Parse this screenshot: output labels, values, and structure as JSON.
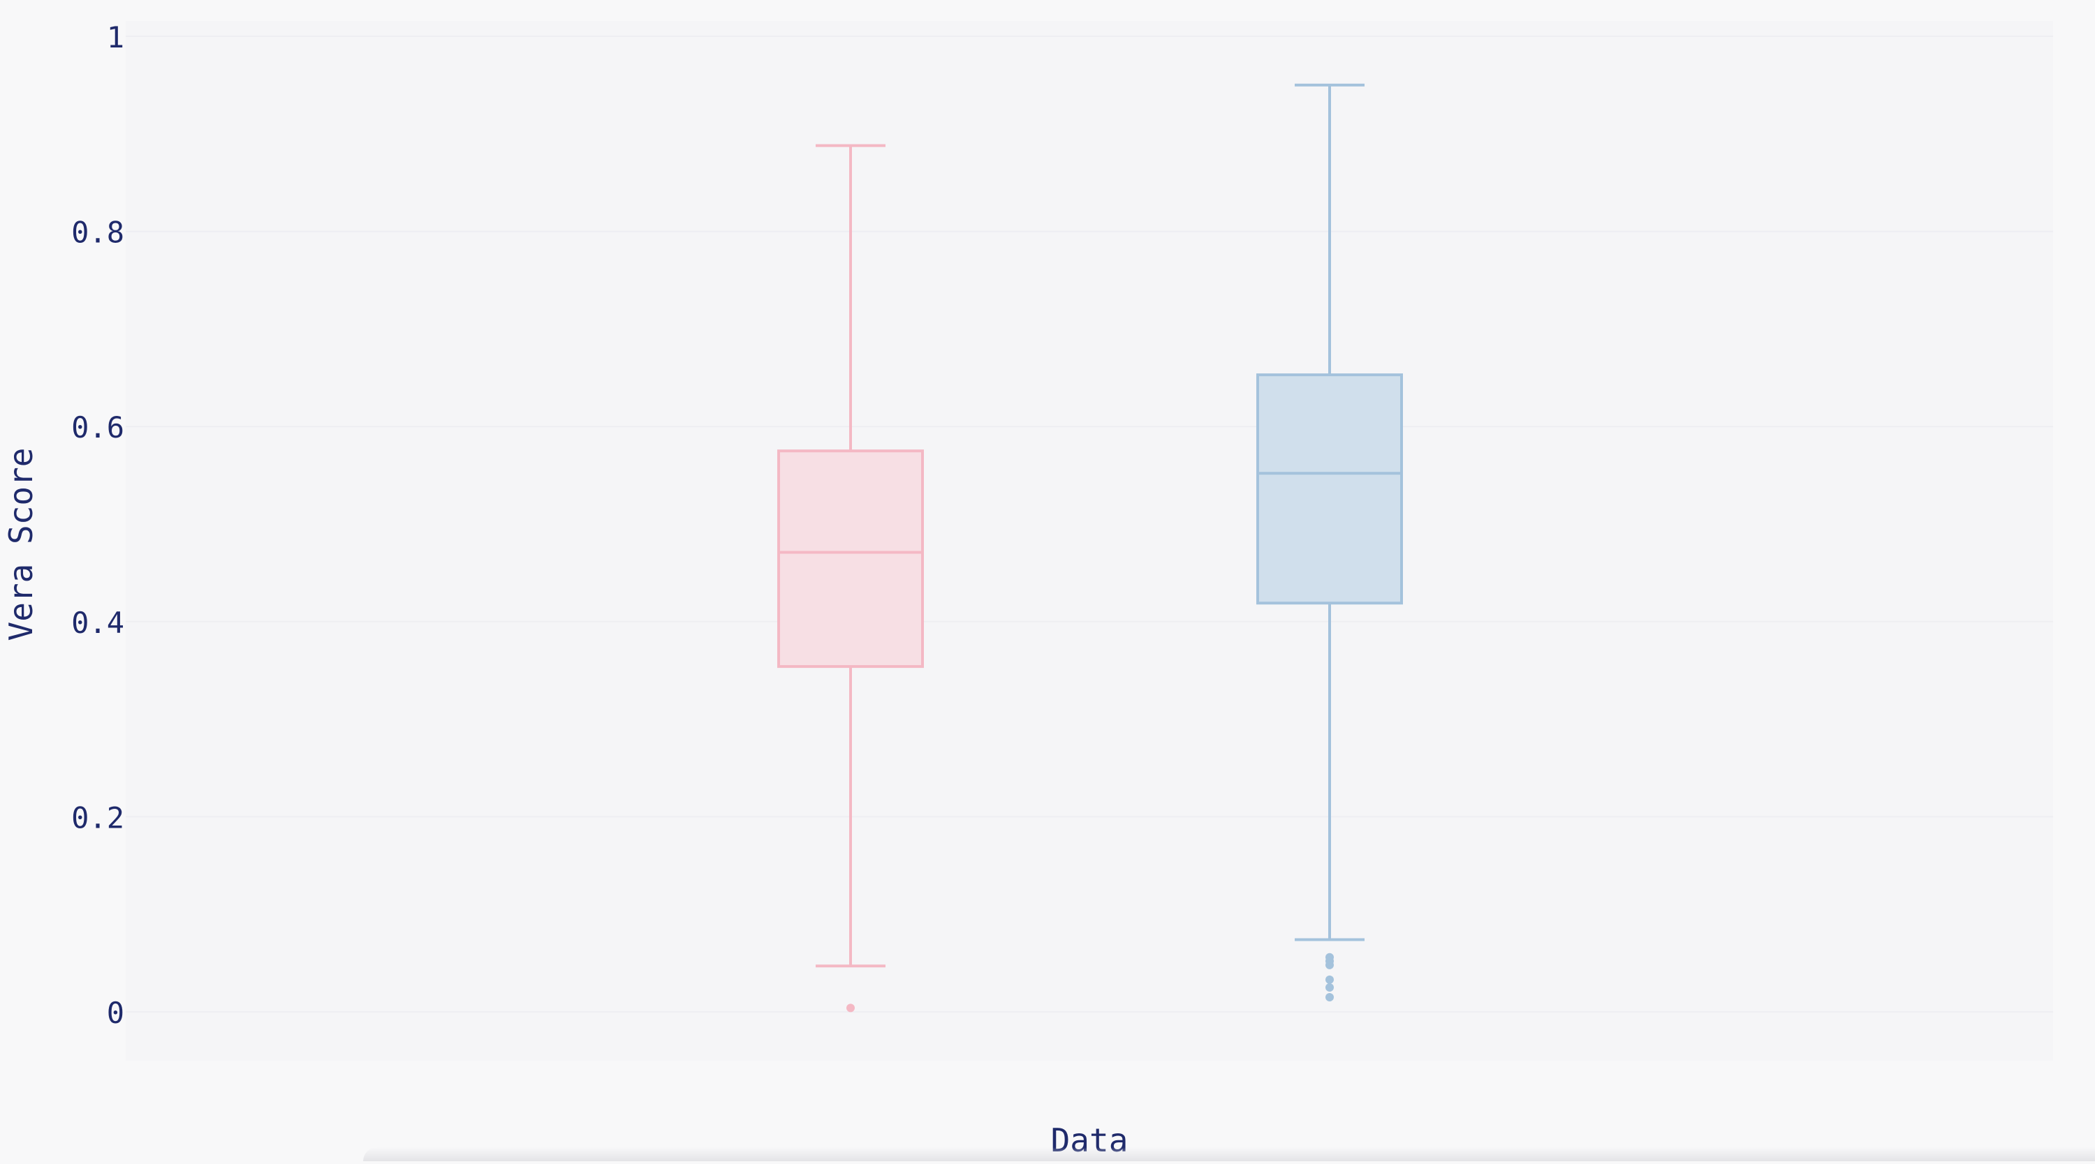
{
  "chart_data": {
    "type": "box",
    "title": "",
    "xlabel": "Data",
    "ylabel": "Vera Score",
    "ylim": [
      0,
      1
    ],
    "yticks": [
      {
        "value": 0,
        "label": "0"
      },
      {
        "value": 0.2,
        "label": "0.2"
      },
      {
        "value": 0.4,
        "label": "0.4"
      },
      {
        "value": 0.6,
        "label": "0.6"
      },
      {
        "value": 0.8,
        "label": "0.8"
      },
      {
        "value": 1,
        "label": "1"
      }
    ],
    "grid": true,
    "legend": "none",
    "series": [
      {
        "color": "#f4b8c4",
        "fill": "#f7dfe4",
        "lower_fence": 0.047,
        "q1": 0.354,
        "median": 0.471,
        "q3": 0.575,
        "upper_fence": 0.888,
        "outliers": [
          0.004
        ]
      },
      {
        "color": "#a4c2dc",
        "fill": "#d0dfec",
        "lower_fence": 0.074,
        "q1": 0.419,
        "median": 0.552,
        "q3": 0.653,
        "upper_fence": 0.95,
        "outliers": [
          0.056,
          0.052,
          0.048,
          0.033,
          0.025,
          0.015
        ]
      }
    ],
    "colors": {
      "background": "#f8f8f9",
      "plot_background": "#f5f5f7",
      "grid": "#eeeef2",
      "text": "#1f2a6b"
    }
  }
}
